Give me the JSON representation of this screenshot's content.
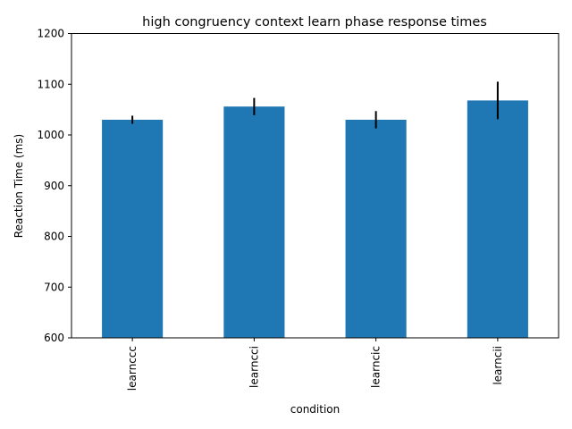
{
  "chart_data": {
    "type": "bar",
    "title": "high congruency context learn phase response times",
    "xlabel": "condition",
    "ylabel": "Reaction Time (ms)",
    "categories": [
      "learnccc",
      "learncci",
      "learncic",
      "learncii"
    ],
    "values": [
      1030,
      1056,
      1030,
      1068
    ],
    "errors": [
      8,
      17,
      17,
      37
    ],
    "ylim": [
      600,
      1200
    ],
    "yticks": [
      600,
      700,
      800,
      900,
      1000,
      1100,
      1200
    ],
    "grid": false,
    "legend": "none",
    "colors": {
      "bar": "#1f77b4",
      "error": "#000000"
    }
  }
}
